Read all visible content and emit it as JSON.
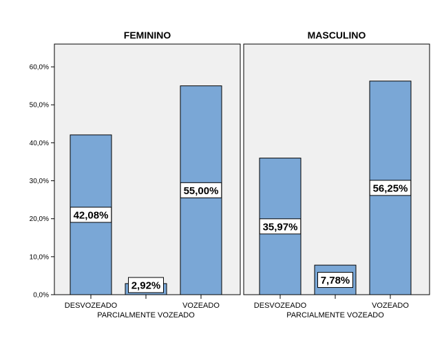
{
  "chart_data": {
    "type": "bar",
    "ylim": [
      0,
      66
    ],
    "yticks": [
      0,
      10,
      20,
      30,
      40,
      50,
      60
    ],
    "ytick_labels": [
      "0,0%",
      "10,0%",
      "20,0%",
      "30,0%",
      "40,0%",
      "50,0%",
      "60,0%"
    ],
    "categories": [
      "DESVOZEADO",
      "PARCIALMENTE VOZEADO",
      "VOZEADO"
    ],
    "colors": {
      "bar_fill": "#7aa7d6",
      "panel_bg": "#f0f0f0"
    },
    "grid": false,
    "panels": [
      {
        "title": "FEMININO",
        "values": [
          42.08,
          2.92,
          55.0
        ],
        "data_labels": [
          "42,08%",
          "2,92%",
          "55,00%"
        ]
      },
      {
        "title": "MASCULINO",
        "values": [
          35.97,
          7.78,
          56.25
        ],
        "data_labels": [
          "35,97%",
          "7,78%",
          "56,25%"
        ]
      }
    ]
  }
}
